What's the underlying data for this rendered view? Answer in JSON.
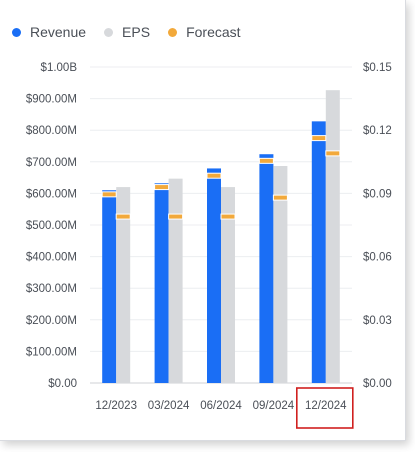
{
  "legend": [
    {
      "label": "Revenue",
      "color": "#1a6ef5"
    },
    {
      "label": "EPS",
      "color": "#d7d9dc"
    },
    {
      "label": "Forecast",
      "color": "#f2a93b"
    }
  ],
  "chart_data": {
    "type": "bar",
    "categories": [
      "12/2023",
      "03/2024",
      "06/2024",
      "09/2024",
      "12/2024"
    ],
    "selected_category": "12/2024",
    "series": [
      {
        "name": "Revenue",
        "axis": "left",
        "color": "#1a6ef5",
        "values": [
          610,
          632,
          679,
          724,
          828
        ]
      },
      {
        "name": "EPS",
        "axis": "right",
        "color": "#d7d9dc",
        "values": [
          0.093,
          0.097,
          0.093,
          0.103,
          0.139
        ]
      }
    ],
    "forecast": {
      "name": "Forecast",
      "color": "#f2a93b",
      "revenue": [
        597,
        620,
        656,
        703,
        775
      ],
      "eps": [
        0.079,
        0.079,
        0.079,
        0.088,
        0.109
      ]
    },
    "left_axis": {
      "ylim": [
        0,
        1000
      ],
      "ticks": [
        0,
        100,
        200,
        300,
        400,
        500,
        600,
        700,
        800,
        900,
        1000
      ],
      "tick_labels": [
        "$0.00",
        "$100.00M",
        "$200.00M",
        "$300.00M",
        "$400.00M",
        "$500.00M",
        "$600.00M",
        "$700.00M",
        "$800.00M",
        "$900.00M",
        "$1.00B"
      ]
    },
    "right_axis": {
      "ylim": [
        0,
        0.15
      ],
      "ticks": [
        0,
        0.03,
        0.06,
        0.09,
        0.12,
        0.15
      ],
      "tick_labels": [
        "$0.00",
        "$0.03",
        "$0.06",
        "$0.09",
        "$0.12",
        "$0.15"
      ]
    },
    "grid": true,
    "legend_position": "top-left"
  }
}
